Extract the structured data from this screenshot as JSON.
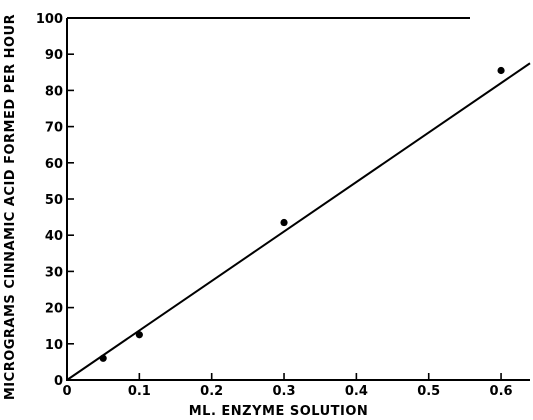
{
  "chart_data": {
    "type": "scatter",
    "title": "",
    "xlabel": "ML. ENZYME SOLUTION",
    "ylabel": "MICROGRAMS CINNAMIC ACID FORMED PER HOUR",
    "xlim": [
      0,
      0.64
    ],
    "ylim": [
      0,
      100
    ],
    "xticks": [
      "0",
      "0.1",
      "0.2",
      "0.3",
      "0.4",
      "0.5",
      "0.6"
    ],
    "yticks": [
      "0",
      "10",
      "20",
      "30",
      "40",
      "50",
      "60",
      "70",
      "80",
      "90",
      "100"
    ],
    "grid": false,
    "series": [
      {
        "x": [
          0.05,
          0.1,
          0.3,
          0.6
        ],
        "y": [
          6,
          12.5,
          43.5,
          85.5
        ]
      }
    ],
    "fit_line": {
      "x": [
        0,
        0.64
      ],
      "y": [
        0,
        87.5
      ]
    }
  }
}
